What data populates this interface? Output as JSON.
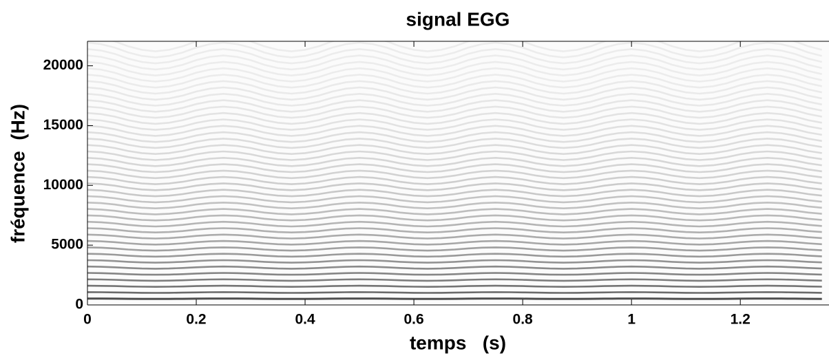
{
  "chart_data": {
    "type": "spectrogram",
    "title": "signal EGG",
    "x_label": "temps   (s)",
    "y_label": "fréquence  (Hz)",
    "x": [
      0,
      0.025,
      0.05,
      0.075,
      0.1,
      0.125,
      0.15,
      0.175,
      0.2,
      0.225,
      0.25,
      0.275,
      0.3,
      0.325,
      0.35,
      0.375,
      0.4,
      0.425,
      0.45,
      0.475,
      0.5,
      0.525,
      0.55,
      0.575,
      0.6,
      0.625,
      0.65,
      0.675,
      0.7,
      0.725,
      0.75,
      0.775,
      0.8,
      0.825,
      0.85,
      0.875,
      0.9,
      0.925,
      0.95,
      0.975,
      1,
      1.025,
      1.05,
      1.075,
      1.1,
      1.125,
      1.15,
      1.175,
      1.2,
      1.225,
      1.25,
      1.275,
      1.3,
      1.325,
      1.35
    ],
    "values": [
      535,
      532,
      525,
      515,
      508,
      505,
      508,
      515,
      525,
      532,
      535,
      532,
      525,
      515,
      508,
      505,
      508,
      515,
      525,
      532,
      535,
      532,
      525,
      515,
      508,
      505,
      508,
      515,
      525,
      532,
      535,
      532,
      525,
      515,
      508,
      505,
      508,
      515,
      525,
      532,
      535,
      532,
      525,
      515,
      508,
      505,
      508,
      515,
      525,
      532,
      535,
      532,
      525,
      515,
      508
    ],
    "color": "#3a3a3a",
    "xlim": [
      0,
      1.363
    ],
    "xticks": [
      0,
      0.2,
      0.4,
      0.6,
      0.8,
      1,
      1.2
    ],
    "ylim": [
      0,
      22050
    ],
    "yticks": [
      0,
      5000,
      10000,
      15000,
      20000
    ]
  }
}
